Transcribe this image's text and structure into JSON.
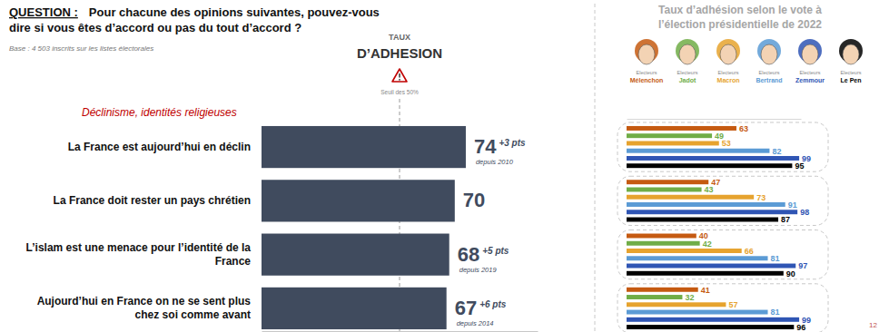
{
  "chart_data": [
    {
      "type": "bar",
      "orientation": "horizontal",
      "title": "QUESTION :",
      "subtitle": "Pour chacune des opinions suivantes, pouvez-vous dire si vous êtes d’accord ou pas du tout d’accord ?",
      "note": "Base : 4 503 inscrits sur les listes électorales",
      "xlabel": "TAUX D’ADHESION",
      "group_label": "Déclinisme, identités religieuses",
      "categories": [
        "La France est aujourd’hui en déclin",
        "La France doit rester un pays chrétien",
        "L’islam est une menace pour l’identité de la France",
        "Aujourd’hui en France on ne se sent plus chez soi comme avant"
      ],
      "values": [
        74,
        70,
        68,
        67
      ],
      "color": "#404b5e",
      "changes": [
        "+3 pts",
        null,
        "+5 pts",
        "+6 pts"
      ],
      "changes_since": [
        "depuis 2010",
        null,
        "depuis 2019",
        "depuis 2014"
      ],
      "threshold": {
        "value": 50,
        "label": "Seuil des 50%"
      },
      "xlim": [
        0,
        100
      ],
      "xticks": [],
      "tick_labels": "y",
      "data_labels": true,
      "page_number": 12
    },
    {
      "type": "bar",
      "orientation": "horizontal",
      "title": "Taux d’adhésion selon le vote à l’élection présidentielle de 2022",
      "categories": [
        null,
        null,
        null,
        null
      ],
      "series": [
        {
          "name": "Electeurs Mélenchon",
          "color": "#c55a11",
          "values": [
            63,
            47,
            40,
            41
          ]
        },
        {
          "name": "Electeurs Jadot",
          "color": "#70ad47",
          "values": [
            49,
            43,
            42,
            32
          ]
        },
        {
          "name": "Electeurs Macron",
          "color": "#e6a32e",
          "values": [
            53,
            73,
            66,
            57
          ]
        },
        {
          "name": "Electeurs Bertrand",
          "color": "#5b9bd5",
          "values": [
            82,
            91,
            81,
            81
          ]
        },
        {
          "name": "Electeurs Zemmour",
          "color": "#2f55b4",
          "values": [
            99,
            98,
            97,
            99
          ]
        },
        {
          "name": "Electeurs Le Pen",
          "color": "#000000",
          "values": [
            95,
            87,
            90,
            96
          ]
        }
      ],
      "xlim": [
        0,
        100
      ],
      "xticks": [],
      "tick_labels": false,
      "data_labels": true,
      "legend": "top"
    }
  ]
}
